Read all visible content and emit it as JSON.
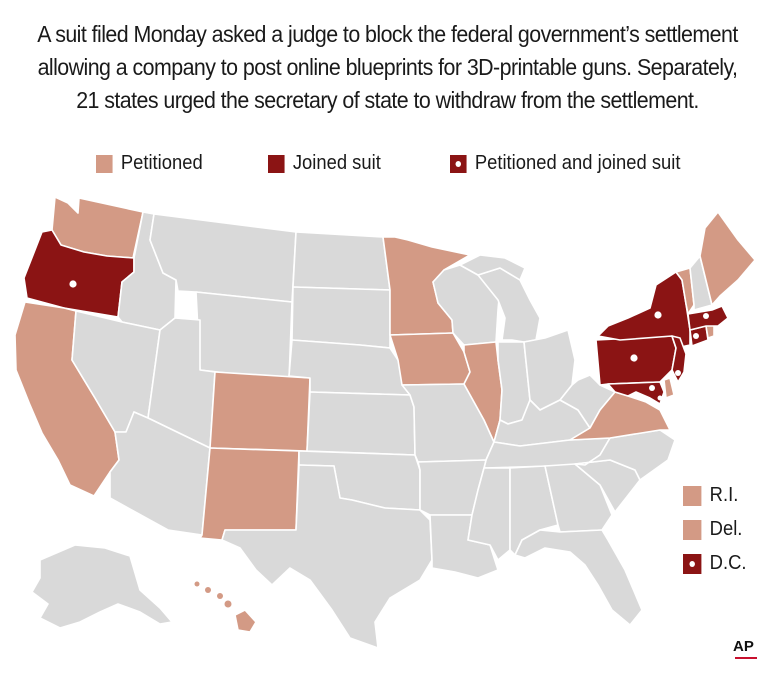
{
  "headline": {
    "lines": [
      "A suit filed Monday asked a judge to block the federal government’s settlement",
      "allowing a company to post online blueprints for 3D-printable guns.  Separately,",
      "21 states urged the secretary of state to withdraw from the settlement."
    ]
  },
  "legend": {
    "petitioned": "Petitioned",
    "joined": "Joined suit",
    "both": "Petitioned and joined suit"
  },
  "small_states": {
    "ri": "R.I.",
    "de": "Del.",
    "dc": "D.C."
  },
  "credit": "AP",
  "colors": {
    "petitioned": "#d39a85",
    "joined": "#8b1414",
    "base": "#d9d9d9",
    "border": "#ffffff"
  },
  "map_data": {
    "petitioned": [
      "WA",
      "CA",
      "CO",
      "NM",
      "MN",
      "IA",
      "IL",
      "VA",
      "VT",
      "ME",
      "HI",
      "RI",
      "DE"
    ],
    "joined": [],
    "petitioned_and_joined": [
      "OR",
      "NY",
      "PA",
      "NJ",
      "MD",
      "MA",
      "CT",
      "DC"
    ]
  }
}
